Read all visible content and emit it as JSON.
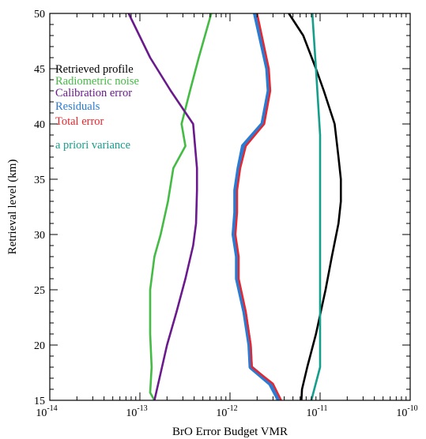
{
  "chart_data": {
    "type": "line",
    "title": "",
    "xlabel": "BrO Error Budget VMR",
    "ylabel": "Retrieval level (km)",
    "xscale": "log",
    "xlim": [
      1e-14,
      1e-10
    ],
    "ylim": [
      15,
      50
    ],
    "grid": false,
    "legend_placement": "top-left",
    "x_ticks": [
      {
        "value": 1e-14,
        "base": "10",
        "exp": "-14"
      },
      {
        "value": 1e-13,
        "base": "10",
        "exp": "-13"
      },
      {
        "value": 1e-12,
        "base": "10",
        "exp": "-12"
      },
      {
        "value": 1e-11,
        "base": "10",
        "exp": "-11"
      },
      {
        "value": 1e-10,
        "base": "10",
        "exp": "-10"
      }
    ],
    "y_ticks": [
      "15",
      "20",
      "25",
      "30",
      "35",
      "40",
      "45",
      "50"
    ],
    "series": [
      {
        "name": "Retrieved profile",
        "color": "#000000",
        "points": [
          [
            6.2e-12,
            15
          ],
          [
            6.3e-12,
            16
          ],
          [
            7.2e-12,
            18
          ],
          [
            9e-12,
            21
          ],
          [
            1.15e-11,
            25
          ],
          [
            1.35e-11,
            28
          ],
          [
            1.6e-11,
            31
          ],
          [
            1.7e-11,
            33
          ],
          [
            1.7e-11,
            35
          ],
          [
            1.6e-11,
            37
          ],
          [
            1.45e-11,
            40
          ],
          [
            1.1e-11,
            43
          ],
          [
            9e-12,
            45
          ],
          [
            6.5e-12,
            48
          ],
          [
            4.5e-12,
            50
          ]
        ]
      },
      {
        "name": "Radiometric noise",
        "color": "#44bb44",
        "points": [
          [
            1.45e-13,
            15
          ],
          [
            1.3e-13,
            15.7
          ],
          [
            1.35e-13,
            18
          ],
          [
            1.3e-13,
            21
          ],
          [
            1.3e-13,
            25
          ],
          [
            1.45e-13,
            28
          ],
          [
            1.7e-13,
            30
          ],
          [
            2.05e-13,
            33
          ],
          [
            2.35e-13,
            36
          ],
          [
            3.2e-13,
            38
          ],
          [
            2.9e-13,
            40
          ],
          [
            3.6e-13,
            43
          ],
          [
            4.5e-13,
            46
          ],
          [
            6.2e-13,
            50
          ]
        ]
      },
      {
        "name": "Calibration error",
        "color": "#6a1a8c",
        "points": [
          [
            1.45e-13,
            15
          ],
          [
            1.65e-13,
            17
          ],
          [
            2e-13,
            20
          ],
          [
            2.55e-13,
            23
          ],
          [
            3.2e-13,
            26
          ],
          [
            3.9e-13,
            29
          ],
          [
            4.2e-13,
            31
          ],
          [
            4.3e-13,
            34
          ],
          [
            4.3e-13,
            36
          ],
          [
            3.9e-13,
            40
          ],
          [
            2.2e-13,
            43
          ],
          [
            1.3e-13,
            46
          ],
          [
            7.5e-14,
            50
          ]
        ]
      },
      {
        "name": "Residuals",
        "color": "#2a7bd1",
        "width": 5.5,
        "points": [
          [
            3.5e-12,
            15
          ],
          [
            2.8e-12,
            16.5
          ],
          [
            1.7e-12,
            18
          ],
          [
            1.65e-12,
            20
          ],
          [
            1.45e-12,
            23
          ],
          [
            1.2e-12,
            26
          ],
          [
            1.2e-12,
            28
          ],
          [
            1.1e-12,
            30
          ],
          [
            1.15e-12,
            32
          ],
          [
            1.15e-12,
            34
          ],
          [
            1.25e-12,
            36
          ],
          [
            1.4e-12,
            38
          ],
          [
            2.3e-12,
            40
          ],
          [
            2.7e-12,
            43
          ],
          [
            2.6e-12,
            45
          ],
          [
            1.9e-12,
            50
          ]
        ]
      },
      {
        "name": "Total error",
        "color": "#e8262e",
        "width": 2.4,
        "points": [
          [
            3.7e-12,
            15
          ],
          [
            3e-12,
            16.5
          ],
          [
            1.75e-12,
            18
          ],
          [
            1.7e-12,
            20
          ],
          [
            1.5e-12,
            23
          ],
          [
            1.25e-12,
            26
          ],
          [
            1.25e-12,
            28
          ],
          [
            1.15e-12,
            30
          ],
          [
            1.2e-12,
            32
          ],
          [
            1.2e-12,
            34
          ],
          [
            1.3e-12,
            36
          ],
          [
            1.5e-12,
            38
          ],
          [
            2.4e-12,
            40
          ],
          [
            2.8e-12,
            43
          ],
          [
            2.7e-12,
            45
          ],
          [
            2e-12,
            50
          ]
        ]
      },
      {
        "name": "a priori variance",
        "color": "#169e8c",
        "points": [
          [
            8e-12,
            15
          ],
          [
            1e-11,
            18
          ],
          [
            1e-11,
            21
          ],
          [
            1e-11,
            25
          ],
          [
            1e-11,
            30
          ],
          [
            1e-11,
            35
          ],
          [
            1e-11,
            39
          ],
          [
            9e-12,
            45
          ],
          [
            8.2e-12,
            50
          ]
        ]
      }
    ],
    "legend": [
      {
        "label": "Retrieved profile",
        "color": "#000000"
      },
      {
        "label": "Radiometric noise",
        "color": "#44bb44"
      },
      {
        "label": "Calibration error",
        "color": "#6a1a8c"
      },
      {
        "label": "Residuals",
        "color": "#2a7bd1"
      },
      {
        "label": "Total error",
        "color": "#e8262e"
      },
      {
        "label": "a priori variance",
        "color": "#169e8c"
      }
    ]
  }
}
